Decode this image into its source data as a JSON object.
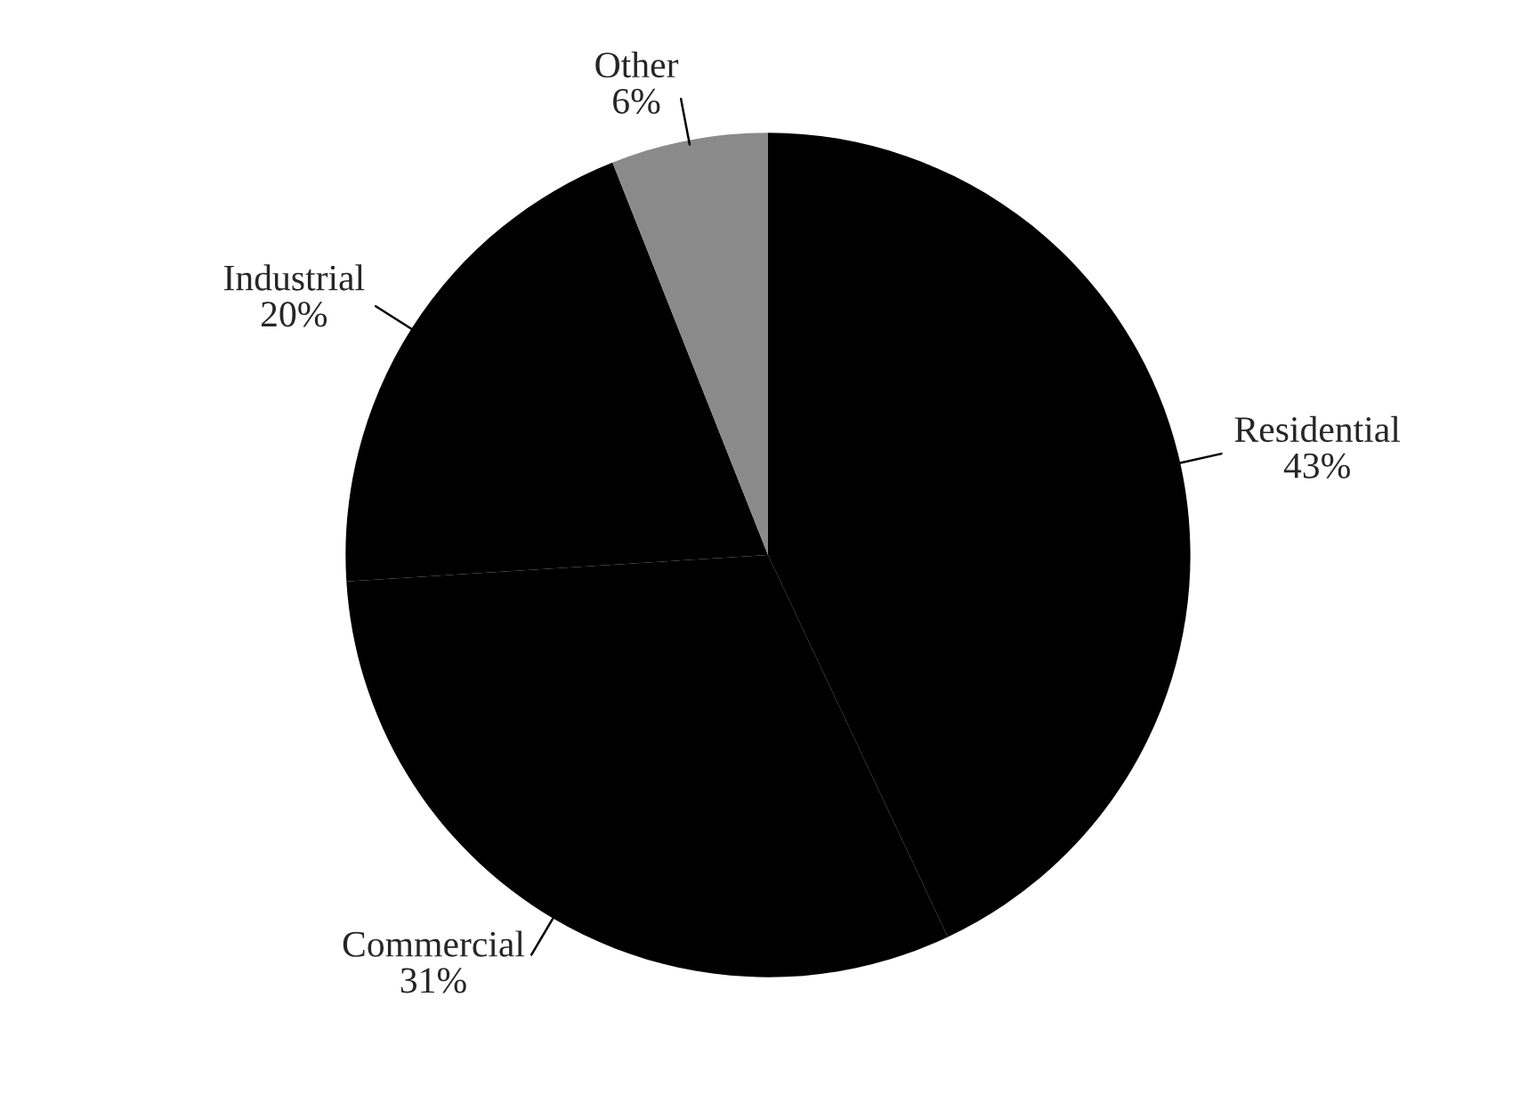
{
  "chart_data": {
    "type": "pie",
    "categories": [
      "Residential",
      "Commercial",
      "Industrial",
      "Other"
    ],
    "values": [
      43,
      31,
      20,
      6
    ],
    "value_labels": [
      "43%",
      "31%",
      "20%",
      "6%"
    ],
    "colors": [
      "#000000",
      "#000000",
      "#000000",
      "#8a8a8a"
    ],
    "legend": false
  }
}
